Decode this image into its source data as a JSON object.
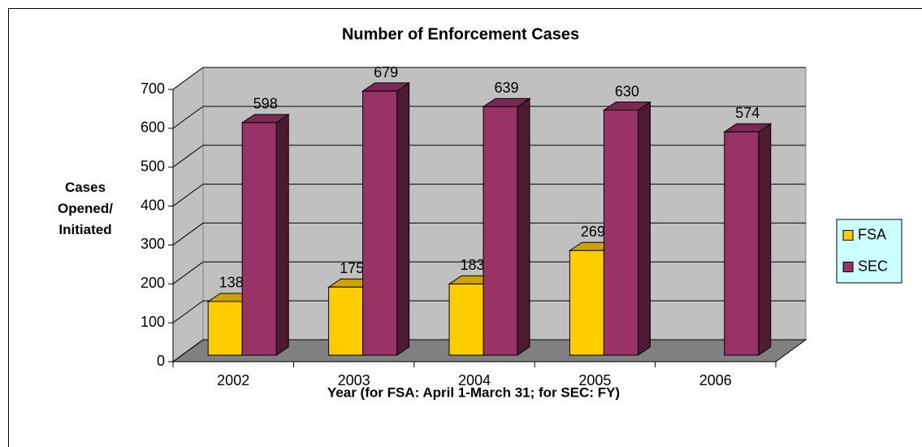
{
  "chart_data": {
    "type": "bar3d",
    "title": "Number of Enforcement Cases",
    "x_label": "Year (for FSA: April 1-March 31; for SEC: FY)",
    "y_label": "Cases Opened/ Initiated",
    "categories": [
      "2002",
      "2003",
      "2004",
      "2005",
      "2006"
    ],
    "series": [
      {
        "name": "FSA",
        "color": "#ffcc00",
        "values": [
          138,
          175,
          183,
          269,
          null
        ]
      },
      {
        "name": "SEC",
        "color": "#993366",
        "values": [
          598,
          679,
          639,
          630,
          574
        ]
      }
    ],
    "ylim": [
      0,
      700
    ],
    "yticks": [
      0,
      100,
      200,
      300,
      400,
      500,
      600,
      700
    ],
    "grid": true,
    "legend": "right",
    "data_labels": true
  }
}
